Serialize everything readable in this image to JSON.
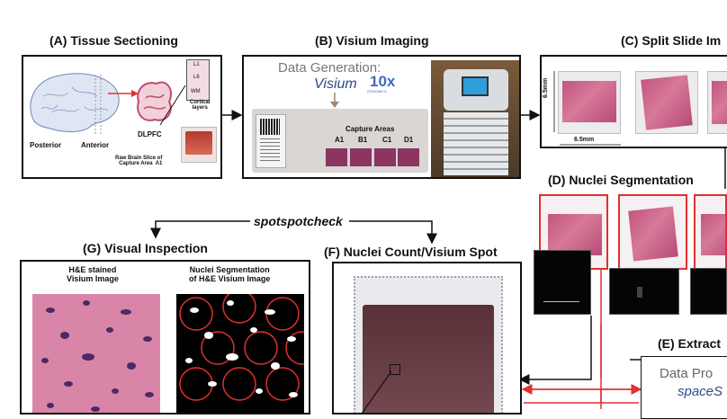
{
  "panels": {
    "a": {
      "title": "(A) Tissue Sectioning",
      "posterior": "Posterior",
      "anterior": "Anterior",
      "dlpfc": "DLPFC",
      "layers": [
        "L1",
        "L6",
        "WM"
      ],
      "cortical": "Cortical\nlayers",
      "raw_caption": "Raw Brain Slice of\nCapture Area  A1"
    },
    "b": {
      "title": "(B) Visium Imaging",
      "data_gen": "Data Generation:",
      "visium": "Visium",
      "tenx": "10x",
      "genomics": "GENOMICS",
      "capture_areas": "Capture Areas",
      "areas": [
        "A1",
        "B1",
        "C1",
        "D1"
      ]
    },
    "c": {
      "title": "(C) Split Slide Im",
      "dim_v": "6.5mm",
      "dim_h": "6.5mm"
    },
    "d": {
      "title": "(D) Nuclei Segmentation"
    },
    "e": {
      "title": "(E) Extract",
      "box_line1": "Data Pro",
      "box_line2": "spaceS"
    },
    "f": {
      "title": "(F) Nuclei Count/Visium Spot"
    },
    "g": {
      "title": "(G) Visual Inspection",
      "left_label": "H&E stained\nVisium Image",
      "right_label": "Nuclei Segmentation\nof H&E Visium Image"
    }
  },
  "flow_label": "spotspotcheck",
  "colors": {
    "accent_red": "#e03030",
    "tissue_pink": "#c4547e",
    "line": "#111111"
  }
}
